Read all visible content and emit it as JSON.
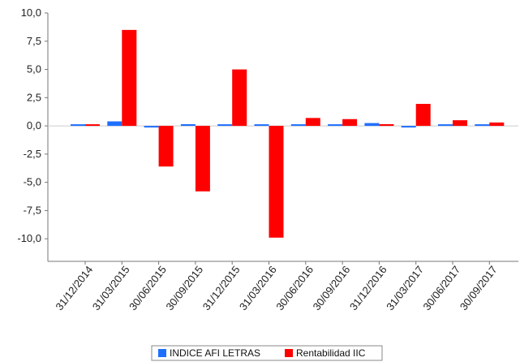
{
  "chart_data": {
    "type": "bar",
    "title": "",
    "xlabel": "",
    "ylabel": "",
    "categories": [
      "31/12/2014",
      "31/03/2015",
      "30/06/2015",
      "30/09/2015",
      "31/12/2015",
      "31/03/2016",
      "30/06/2016",
      "30/09/2016",
      "31/12/2016",
      "31/03/2017",
      "30/06/2017",
      "30/09/2017"
    ],
    "series": [
      {
        "name": "INDICE AFI LETRAS",
        "color": "#1f6fff",
        "values": [
          0.1,
          0.4,
          -0.05,
          0.15,
          0.0,
          0.1,
          0.0,
          0.05,
          0.25,
          -0.1,
          0.05,
          0.0
        ]
      },
      {
        "name": "Rentabilidad IIC",
        "color": "#ff0000",
        "values": [
          0.1,
          8.5,
          -3.6,
          -5.8,
          5.0,
          -9.9,
          0.7,
          0.6,
          0.15,
          1.95,
          0.5,
          0.3
        ]
      }
    ],
    "ylim": [
      -12.0,
      10.0
    ],
    "yticks": [
      "10,0",
      "7,5",
      "5,0",
      "2,5",
      "0,0",
      "-2,5",
      "-5,0",
      "-7,5",
      "-10,0"
    ],
    "ytick_values": [
      10.0,
      7.5,
      5.0,
      2.5,
      0.0,
      -2.5,
      -5.0,
      -7.5,
      -10.0
    ],
    "grid": false,
    "legend_position": "bottom-center"
  }
}
